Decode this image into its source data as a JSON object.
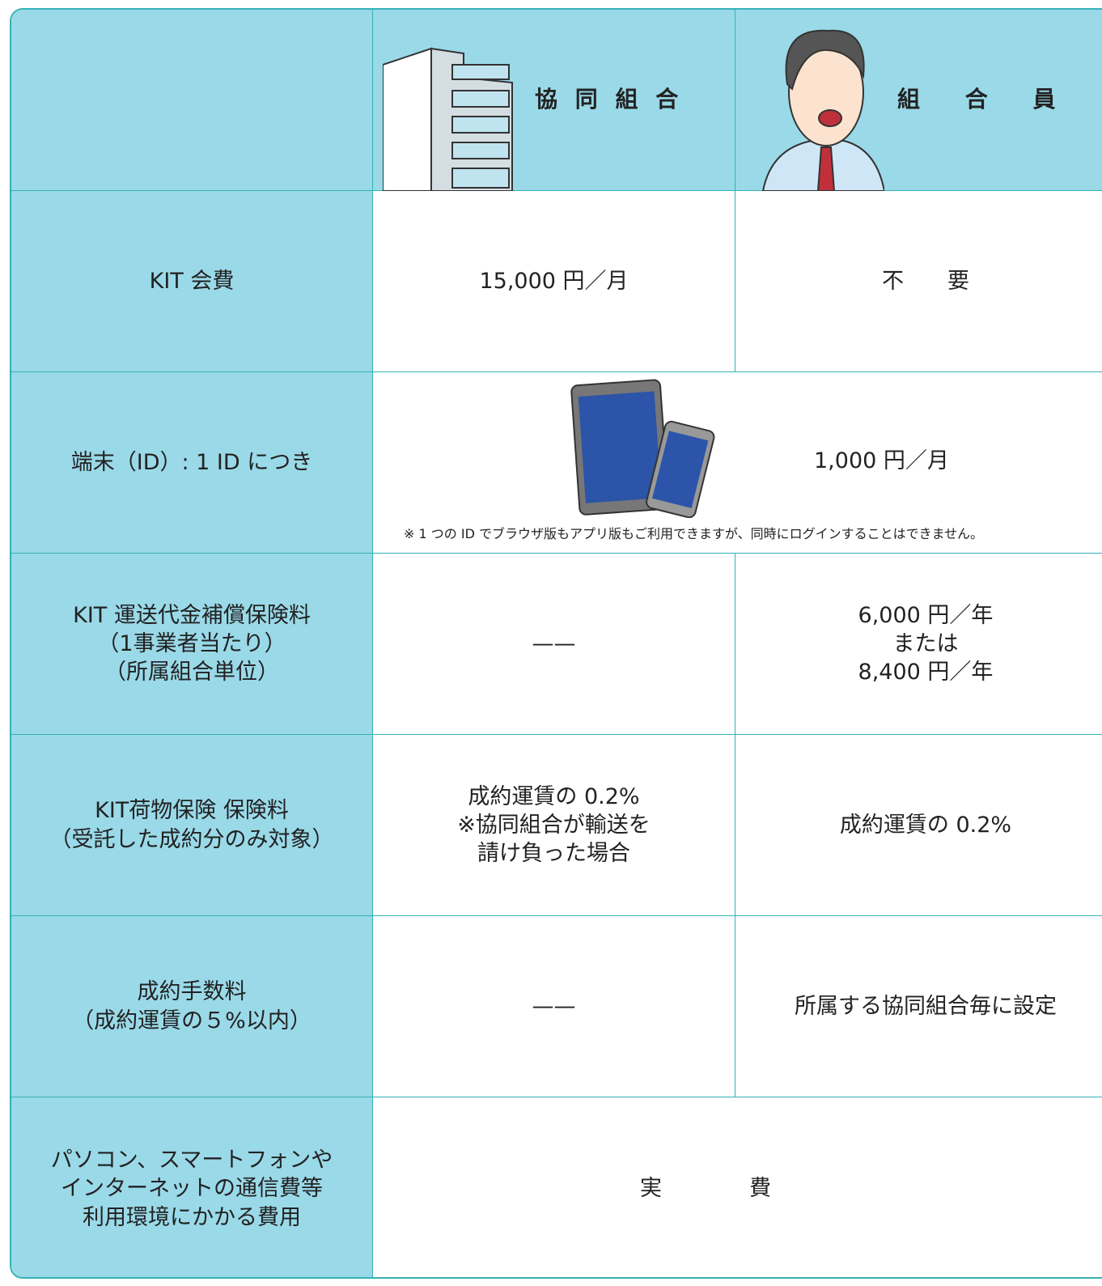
{
  "header": {
    "cells": [
      "協 同 組 合",
      "組　 合　 員"
    ]
  },
  "table": {
    "rows": [
      {
        "label": "KIT 会費",
        "cells": [
          "15,000 円／月",
          "不　　要"
        ]
      },
      {
        "label": "端末（ID）: 1 ID につき",
        "cells": [
          "1,000 円／月"
        ],
        "note": "※ 1 つの ID でブラウザ版もアプリ版もご利用できますが、同時にログインすることはできません。"
      },
      {
        "label": "KIT 運送代金補償保険料\n（1事業者当たり）\n（所属組合単位）",
        "cells": [
          "——",
          "6,000 円／年\nまたは\n8,400 円／年"
        ]
      },
      {
        "label": "KIT荷物保険 保険料\n（受託した成約分のみ対象）",
        "cells": [
          "成約運賃の 0.2%\n※協同組合が輸送を\n請け負った場合",
          "成約運賃の 0.2%"
        ]
      },
      {
        "label": "成約手数料\n（成約運賃の５%以内）",
        "cells": [
          "——",
          "所属する協同組合毎に設定"
        ]
      },
      {
        "label": "パソコン、スマートフォンや\nインターネットの通信費等\n利用環境にかかる費用",
        "cells": [
          "実　　　　費"
        ]
      }
    ]
  }
}
